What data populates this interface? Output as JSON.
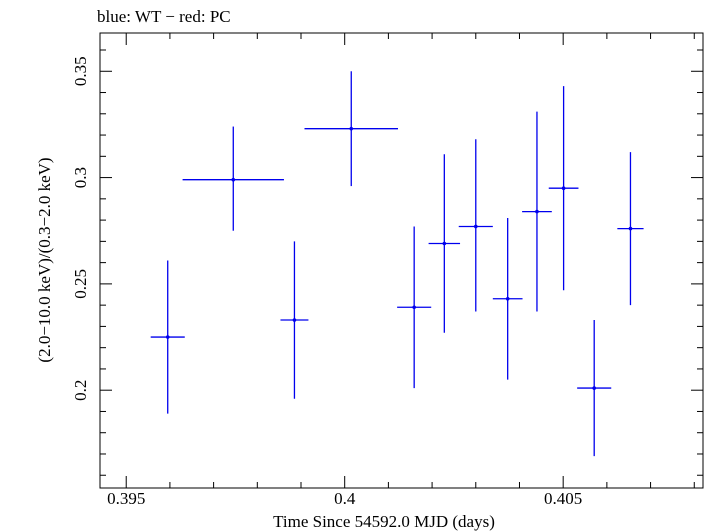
{
  "chart_data": {
    "type": "scatter",
    "title": "blue: WT − red: PC",
    "xlabel": "Time Since 54592.0 MJD (days)",
    "ylabel": "(2.0−10.0 keV)/(0.3−2.0 keV)",
    "xlim": [
      0.3944,
      0.4082
    ],
    "ylim": [
      0.154,
      0.368
    ],
    "x_ticks": [
      0.395,
      0.4,
      0.405
    ],
    "x_tick_labels": [
      "0.395",
      "0.4",
      "0.405"
    ],
    "y_ticks": [
      0.2,
      0.25,
      0.3,
      0.35
    ],
    "y_tick_labels": [
      "0.2",
      "0.25",
      "0.3",
      "0.35"
    ],
    "grid": false,
    "series": [
      {
        "color": "#0000ee",
        "points": [
          {
            "x": 0.39595,
            "y": 0.225,
            "xerr": 0.00039,
            "yerr_low": 0.036,
            "yerr_high": 0.036
          },
          {
            "x": 0.39745,
            "y": 0.299,
            "xerr": 0.00116,
            "yerr_low": 0.024,
            "yerr_high": 0.025
          },
          {
            "x": 0.39885,
            "y": 0.233,
            "xerr": 0.00032,
            "yerr_low": 0.037,
            "yerr_high": 0.037
          },
          {
            "x": 0.40015,
            "y": 0.323,
            "xerr": 0.00107,
            "yerr_low": 0.027,
            "yerr_high": 0.027
          },
          {
            "x": 0.40159,
            "y": 0.239,
            "xerr": 0.00039,
            "yerr_low": 0.038,
            "yerr_high": 0.038
          },
          {
            "x": 0.40228,
            "y": 0.269,
            "xerr": 0.00036,
            "yerr_low": 0.042,
            "yerr_high": 0.042
          },
          {
            "x": 0.403,
            "y": 0.277,
            "xerr": 0.00039,
            "yerr_low": 0.04,
            "yerr_high": 0.041
          },
          {
            "x": 0.40373,
            "y": 0.243,
            "xerr": 0.00034,
            "yerr_low": 0.038,
            "yerr_high": 0.038
          },
          {
            "x": 0.4044,
            "y": 0.284,
            "xerr": 0.00034,
            "yerr_low": 0.047,
            "yerr_high": 0.047
          },
          {
            "x": 0.40501,
            "y": 0.295,
            "xerr": 0.00034,
            "yerr_low": 0.048,
            "yerr_high": 0.048
          },
          {
            "x": 0.40571,
            "y": 0.201,
            "xerr": 0.00039,
            "yerr_low": 0.032,
            "yerr_high": 0.032
          },
          {
            "x": 0.40654,
            "y": 0.276,
            "xerr": 0.0003,
            "yerr_low": 0.036,
            "yerr_high": 0.036
          }
        ]
      }
    ]
  }
}
